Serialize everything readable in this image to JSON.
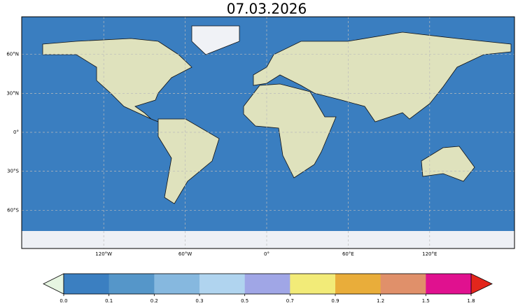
{
  "title": "07.03.2026",
  "map": {
    "lat_ticks": [
      {
        "value": 60,
        "label": "60°N"
      },
      {
        "value": 30,
        "label": "30°N"
      },
      {
        "value": 0,
        "label": "0°"
      },
      {
        "value": -30,
        "label": "30°S"
      },
      {
        "value": -60,
        "label": "60°S"
      }
    ],
    "lon_ticks": [
      {
        "value": -120,
        "label": "120°W"
      },
      {
        "value": -60,
        "label": "60°W"
      },
      {
        "value": 0,
        "label": "0°"
      },
      {
        "value": 60,
        "label": "60°E"
      },
      {
        "value": 120,
        "label": "120°E"
      }
    ],
    "gridlines": true,
    "ocean_color": "#3a7ec0",
    "land_color": "#dfe2bd"
  },
  "colorbar": {
    "ticks": [
      {
        "value": 0,
        "label": "0.0"
      },
      0.1,
      0.2,
      0.3,
      0.5,
      0.7,
      0.9,
      1.2,
      1.5,
      1.8
    ],
    "colors": [
      "#3b7fc1",
      "#5596c9",
      "#86b8df",
      "#b0d4ef",
      "#a0a6e6",
      "#f2eb78",
      "#e9ad3a",
      "#e0906a",
      "#e0118f"
    ],
    "under_color": "#e6f5e1",
    "over_color": "#e3261c"
  }
}
